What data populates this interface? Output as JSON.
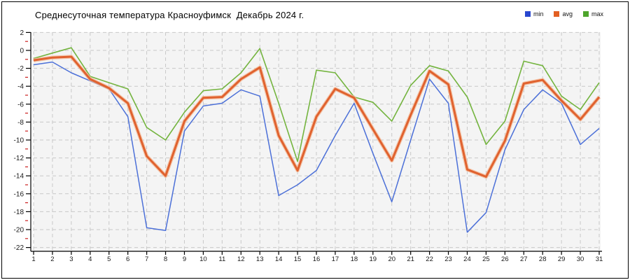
{
  "title": "Среднесуточная температура Красноуфимск  Декабрь 2024 г.",
  "legend": {
    "position": "top-right",
    "items": [
      {
        "label": "min",
        "color": "#2847cf"
      },
      {
        "label": "avg",
        "color": "#e25f22"
      },
      {
        "label": "max",
        "color": "#4ea52c"
      }
    ]
  },
  "colors": {
    "plot_background": "#f4f4f4",
    "grid": "#c8c8c8",
    "axis": "#000000",
    "minor_tick": "#cc2020",
    "min_line": "#4c70d8",
    "avg_line": "#e0622f",
    "avg_halo": "#f4b894",
    "max_line": "#74b43f"
  },
  "chart_data": {
    "type": "line",
    "title": "Среднесуточная температура Красноуфимск  Декабрь 2024 г.",
    "xlabel": "",
    "ylabel": "",
    "x": [
      1,
      2,
      3,
      4,
      5,
      6,
      7,
      8,
      9,
      10,
      11,
      12,
      13,
      14,
      15,
      16,
      17,
      18,
      19,
      20,
      21,
      22,
      23,
      24,
      25,
      26,
      27,
      28,
      29,
      30,
      31
    ],
    "series": [
      {
        "name": "min",
        "values": [
          -1.6,
          -1.3,
          -2.5,
          -3.4,
          -4.3,
          -7.4,
          -19.8,
          -20.1,
          -9.0,
          -6.2,
          -5.9,
          -4.4,
          -5.1,
          -16.2,
          -15.0,
          -13.4,
          -9.5,
          -5.9,
          -11.5,
          -16.9,
          -10.0,
          -3.2,
          -5.9,
          -20.3,
          -18.1,
          -11.1,
          -6.6,
          -4.4,
          -5.9,
          -10.5,
          -8.7
        ]
      },
      {
        "name": "avg",
        "values": [
          -1.1,
          -0.8,
          -0.7,
          -3.2,
          -4.2,
          -5.9,
          -11.8,
          -14.0,
          -7.9,
          -5.3,
          -5.2,
          -3.2,
          -1.9,
          -9.5,
          -13.4,
          -7.4,
          -4.3,
          -5.3,
          -8.8,
          -12.3,
          -7.2,
          -2.3,
          -3.8,
          -13.3,
          -14.1,
          -10.1,
          -3.7,
          -3.3,
          -5.6,
          -7.7,
          -5.2
        ]
      },
      {
        "name": "max",
        "values": [
          -0.9,
          -0.3,
          0.3,
          -2.9,
          -3.6,
          -4.3,
          -8.6,
          -10.0,
          -6.9,
          -4.5,
          -4.3,
          -2.5,
          0.2,
          -5.9,
          -12.4,
          -2.2,
          -2.5,
          -5.2,
          -5.8,
          -7.9,
          -3.9,
          -1.7,
          -2.3,
          -5.2,
          -10.5,
          -7.9,
          -1.2,
          -1.7,
          -5.1,
          -6.6,
          -3.6
        ]
      }
    ],
    "ylim": [
      -22,
      2
    ],
    "y_ticks": [
      2,
      0,
      -2,
      -4,
      -6,
      -8,
      -10,
      -12,
      -14,
      -16,
      -18,
      -20,
      -22
    ],
    "y_minor_ticks": [
      1,
      -1,
      -3,
      -5,
      -7,
      -9,
      -11,
      -13,
      -15,
      -17,
      -19,
      -21
    ],
    "x_ticks": [
      1,
      2,
      3,
      4,
      5,
      6,
      7,
      8,
      9,
      10,
      11,
      12,
      13,
      14,
      15,
      16,
      17,
      18,
      19,
      20,
      21,
      22,
      23,
      24,
      25,
      26,
      27,
      28,
      29,
      30,
      31
    ],
    "grid": "dashed",
    "legend_position": "top-right"
  }
}
